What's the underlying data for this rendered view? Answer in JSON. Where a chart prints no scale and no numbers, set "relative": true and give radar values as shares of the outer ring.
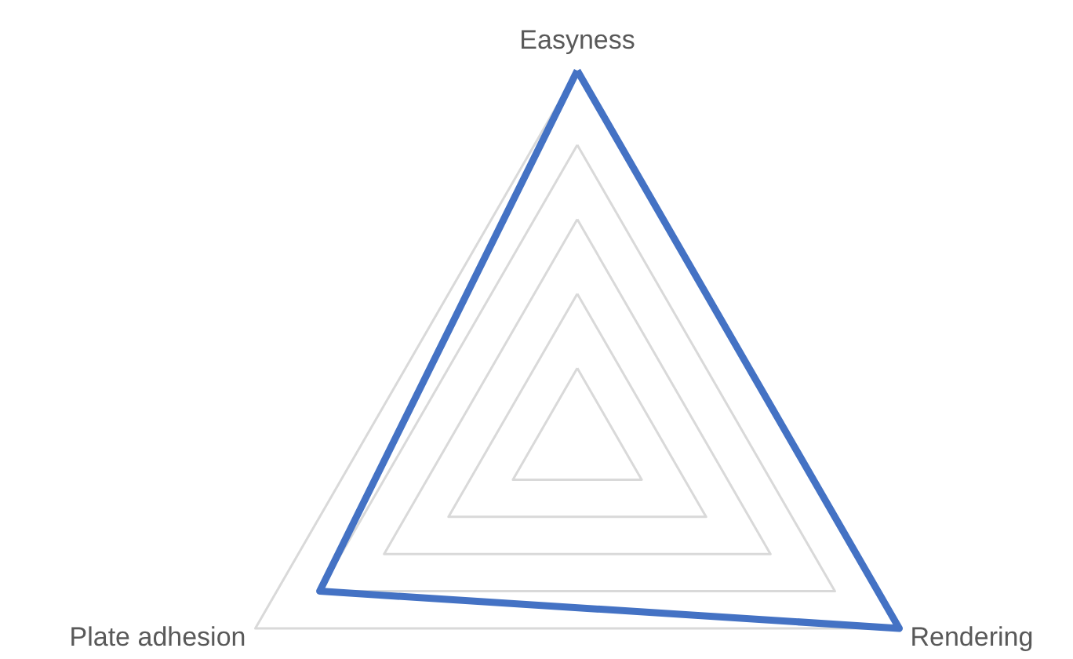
{
  "chart_data": {
    "type": "radar",
    "relative": true,
    "grid": true,
    "marker": "none",
    "line_style": "solid",
    "categories": [
      "Easyness",
      "Rendering",
      "Plate adhesion"
    ],
    "series": [
      {
        "color": "#4472c4",
        "values": [
          1,
          1,
          0.8
        ]
      }
    ]
  }
}
